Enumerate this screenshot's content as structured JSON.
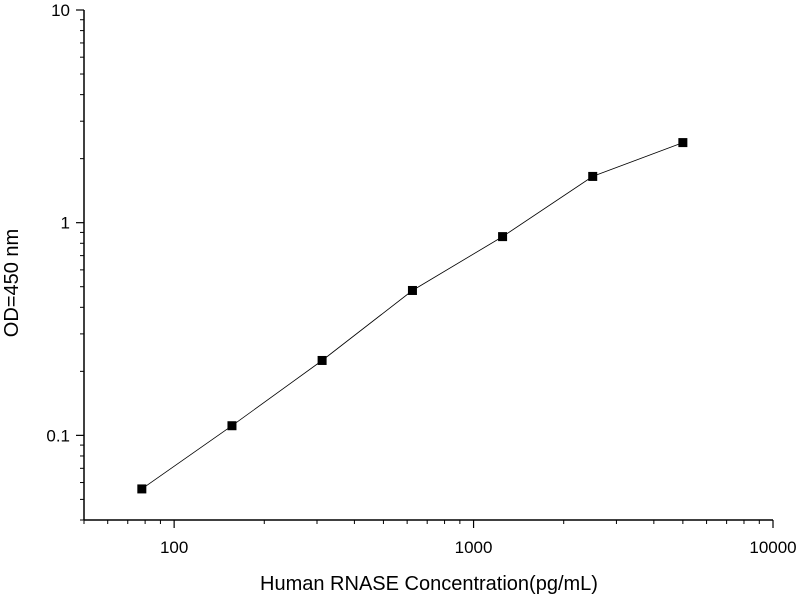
{
  "chart_data": {
    "type": "scatter",
    "title": "",
    "xlabel": "Human RNASE Concentration(pg/mL)",
    "ylabel": "OD=450 nm",
    "x_scale": "log",
    "y_scale": "log",
    "xlim": [
      50,
      10000
    ],
    "ylim": [
      0.04,
      10
    ],
    "x_ticks": [
      100,
      1000,
      10000
    ],
    "x_tick_labels": [
      "100",
      "1000",
      "10000"
    ],
    "y_ticks": [
      0.1,
      1,
      10
    ],
    "y_tick_labels": [
      "0.1",
      "1",
      "10"
    ],
    "grid": false,
    "legend": "none",
    "series": [
      {
        "x": [
          78,
          156,
          312,
          625,
          1250,
          2500,
          5000
        ],
        "y": [
          0.056,
          0.111,
          0.225,
          0.48,
          0.86,
          1.65,
          2.38
        ],
        "marker": "square",
        "connected": true,
        "marker_color": "#000000",
        "line_color": "#000000"
      }
    ]
  }
}
